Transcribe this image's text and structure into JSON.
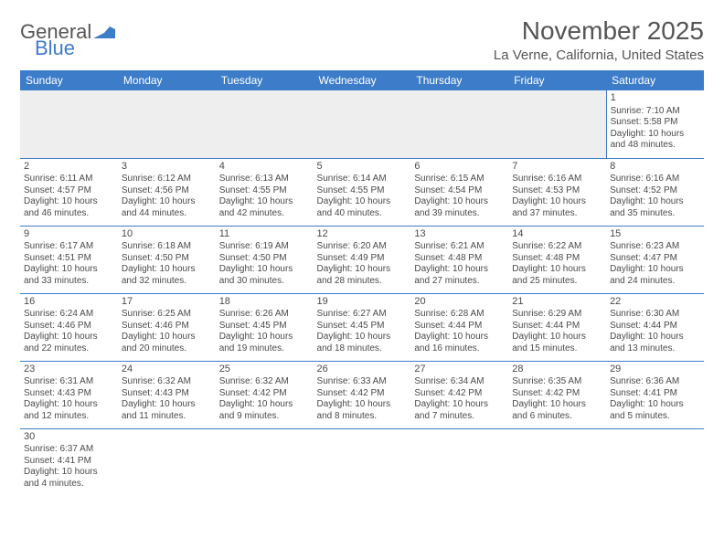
{
  "logo": {
    "part1": "General",
    "part2": "Blue"
  },
  "title": "November 2025",
  "location": "La Verne, California, United States",
  "colors": {
    "header_bg": "#3d7cc9",
    "header_fg": "#ffffff",
    "text": "#4a4a4a",
    "border": "#3d7cc9",
    "empty_bg": "#eeeeee",
    "page_bg": "#ffffff"
  },
  "dayHeaders": [
    "Sunday",
    "Monday",
    "Tuesday",
    "Wednesday",
    "Thursday",
    "Friday",
    "Saturday"
  ],
  "weeks": [
    [
      null,
      null,
      null,
      null,
      null,
      null,
      {
        "n": "1",
        "sr": "Sunrise: 7:10 AM",
        "ss": "Sunset: 5:58 PM",
        "d1": "Daylight: 10 hours",
        "d2": "and 48 minutes."
      }
    ],
    [
      {
        "n": "2",
        "sr": "Sunrise: 6:11 AM",
        "ss": "Sunset: 4:57 PM",
        "d1": "Daylight: 10 hours",
        "d2": "and 46 minutes."
      },
      {
        "n": "3",
        "sr": "Sunrise: 6:12 AM",
        "ss": "Sunset: 4:56 PM",
        "d1": "Daylight: 10 hours",
        "d2": "and 44 minutes."
      },
      {
        "n": "4",
        "sr": "Sunrise: 6:13 AM",
        "ss": "Sunset: 4:55 PM",
        "d1": "Daylight: 10 hours",
        "d2": "and 42 minutes."
      },
      {
        "n": "5",
        "sr": "Sunrise: 6:14 AM",
        "ss": "Sunset: 4:55 PM",
        "d1": "Daylight: 10 hours",
        "d2": "and 40 minutes."
      },
      {
        "n": "6",
        "sr": "Sunrise: 6:15 AM",
        "ss": "Sunset: 4:54 PM",
        "d1": "Daylight: 10 hours",
        "d2": "and 39 minutes."
      },
      {
        "n": "7",
        "sr": "Sunrise: 6:16 AM",
        "ss": "Sunset: 4:53 PM",
        "d1": "Daylight: 10 hours",
        "d2": "and 37 minutes."
      },
      {
        "n": "8",
        "sr": "Sunrise: 6:16 AM",
        "ss": "Sunset: 4:52 PM",
        "d1": "Daylight: 10 hours",
        "d2": "and 35 minutes."
      }
    ],
    [
      {
        "n": "9",
        "sr": "Sunrise: 6:17 AM",
        "ss": "Sunset: 4:51 PM",
        "d1": "Daylight: 10 hours",
        "d2": "and 33 minutes."
      },
      {
        "n": "10",
        "sr": "Sunrise: 6:18 AM",
        "ss": "Sunset: 4:50 PM",
        "d1": "Daylight: 10 hours",
        "d2": "and 32 minutes."
      },
      {
        "n": "11",
        "sr": "Sunrise: 6:19 AM",
        "ss": "Sunset: 4:50 PM",
        "d1": "Daylight: 10 hours",
        "d2": "and 30 minutes."
      },
      {
        "n": "12",
        "sr": "Sunrise: 6:20 AM",
        "ss": "Sunset: 4:49 PM",
        "d1": "Daylight: 10 hours",
        "d2": "and 28 minutes."
      },
      {
        "n": "13",
        "sr": "Sunrise: 6:21 AM",
        "ss": "Sunset: 4:48 PM",
        "d1": "Daylight: 10 hours",
        "d2": "and 27 minutes."
      },
      {
        "n": "14",
        "sr": "Sunrise: 6:22 AM",
        "ss": "Sunset: 4:48 PM",
        "d1": "Daylight: 10 hours",
        "d2": "and 25 minutes."
      },
      {
        "n": "15",
        "sr": "Sunrise: 6:23 AM",
        "ss": "Sunset: 4:47 PM",
        "d1": "Daylight: 10 hours",
        "d2": "and 24 minutes."
      }
    ],
    [
      {
        "n": "16",
        "sr": "Sunrise: 6:24 AM",
        "ss": "Sunset: 4:46 PM",
        "d1": "Daylight: 10 hours",
        "d2": "and 22 minutes."
      },
      {
        "n": "17",
        "sr": "Sunrise: 6:25 AM",
        "ss": "Sunset: 4:46 PM",
        "d1": "Daylight: 10 hours",
        "d2": "and 20 minutes."
      },
      {
        "n": "18",
        "sr": "Sunrise: 6:26 AM",
        "ss": "Sunset: 4:45 PM",
        "d1": "Daylight: 10 hours",
        "d2": "and 19 minutes."
      },
      {
        "n": "19",
        "sr": "Sunrise: 6:27 AM",
        "ss": "Sunset: 4:45 PM",
        "d1": "Daylight: 10 hours",
        "d2": "and 18 minutes."
      },
      {
        "n": "20",
        "sr": "Sunrise: 6:28 AM",
        "ss": "Sunset: 4:44 PM",
        "d1": "Daylight: 10 hours",
        "d2": "and 16 minutes."
      },
      {
        "n": "21",
        "sr": "Sunrise: 6:29 AM",
        "ss": "Sunset: 4:44 PM",
        "d1": "Daylight: 10 hours",
        "d2": "and 15 minutes."
      },
      {
        "n": "22",
        "sr": "Sunrise: 6:30 AM",
        "ss": "Sunset: 4:44 PM",
        "d1": "Daylight: 10 hours",
        "d2": "and 13 minutes."
      }
    ],
    [
      {
        "n": "23",
        "sr": "Sunrise: 6:31 AM",
        "ss": "Sunset: 4:43 PM",
        "d1": "Daylight: 10 hours",
        "d2": "and 12 minutes."
      },
      {
        "n": "24",
        "sr": "Sunrise: 6:32 AM",
        "ss": "Sunset: 4:43 PM",
        "d1": "Daylight: 10 hours",
        "d2": "and 11 minutes."
      },
      {
        "n": "25",
        "sr": "Sunrise: 6:32 AM",
        "ss": "Sunset: 4:42 PM",
        "d1": "Daylight: 10 hours",
        "d2": "and 9 minutes."
      },
      {
        "n": "26",
        "sr": "Sunrise: 6:33 AM",
        "ss": "Sunset: 4:42 PM",
        "d1": "Daylight: 10 hours",
        "d2": "and 8 minutes."
      },
      {
        "n": "27",
        "sr": "Sunrise: 6:34 AM",
        "ss": "Sunset: 4:42 PM",
        "d1": "Daylight: 10 hours",
        "d2": "and 7 minutes."
      },
      {
        "n": "28",
        "sr": "Sunrise: 6:35 AM",
        "ss": "Sunset: 4:42 PM",
        "d1": "Daylight: 10 hours",
        "d2": "and 6 minutes."
      },
      {
        "n": "29",
        "sr": "Sunrise: 6:36 AM",
        "ss": "Sunset: 4:41 PM",
        "d1": "Daylight: 10 hours",
        "d2": "and 5 minutes."
      }
    ],
    [
      {
        "n": "30",
        "sr": "Sunrise: 6:37 AM",
        "ss": "Sunset: 4:41 PM",
        "d1": "Daylight: 10 hours",
        "d2": "and 4 minutes."
      },
      null,
      null,
      null,
      null,
      null,
      null
    ]
  ]
}
